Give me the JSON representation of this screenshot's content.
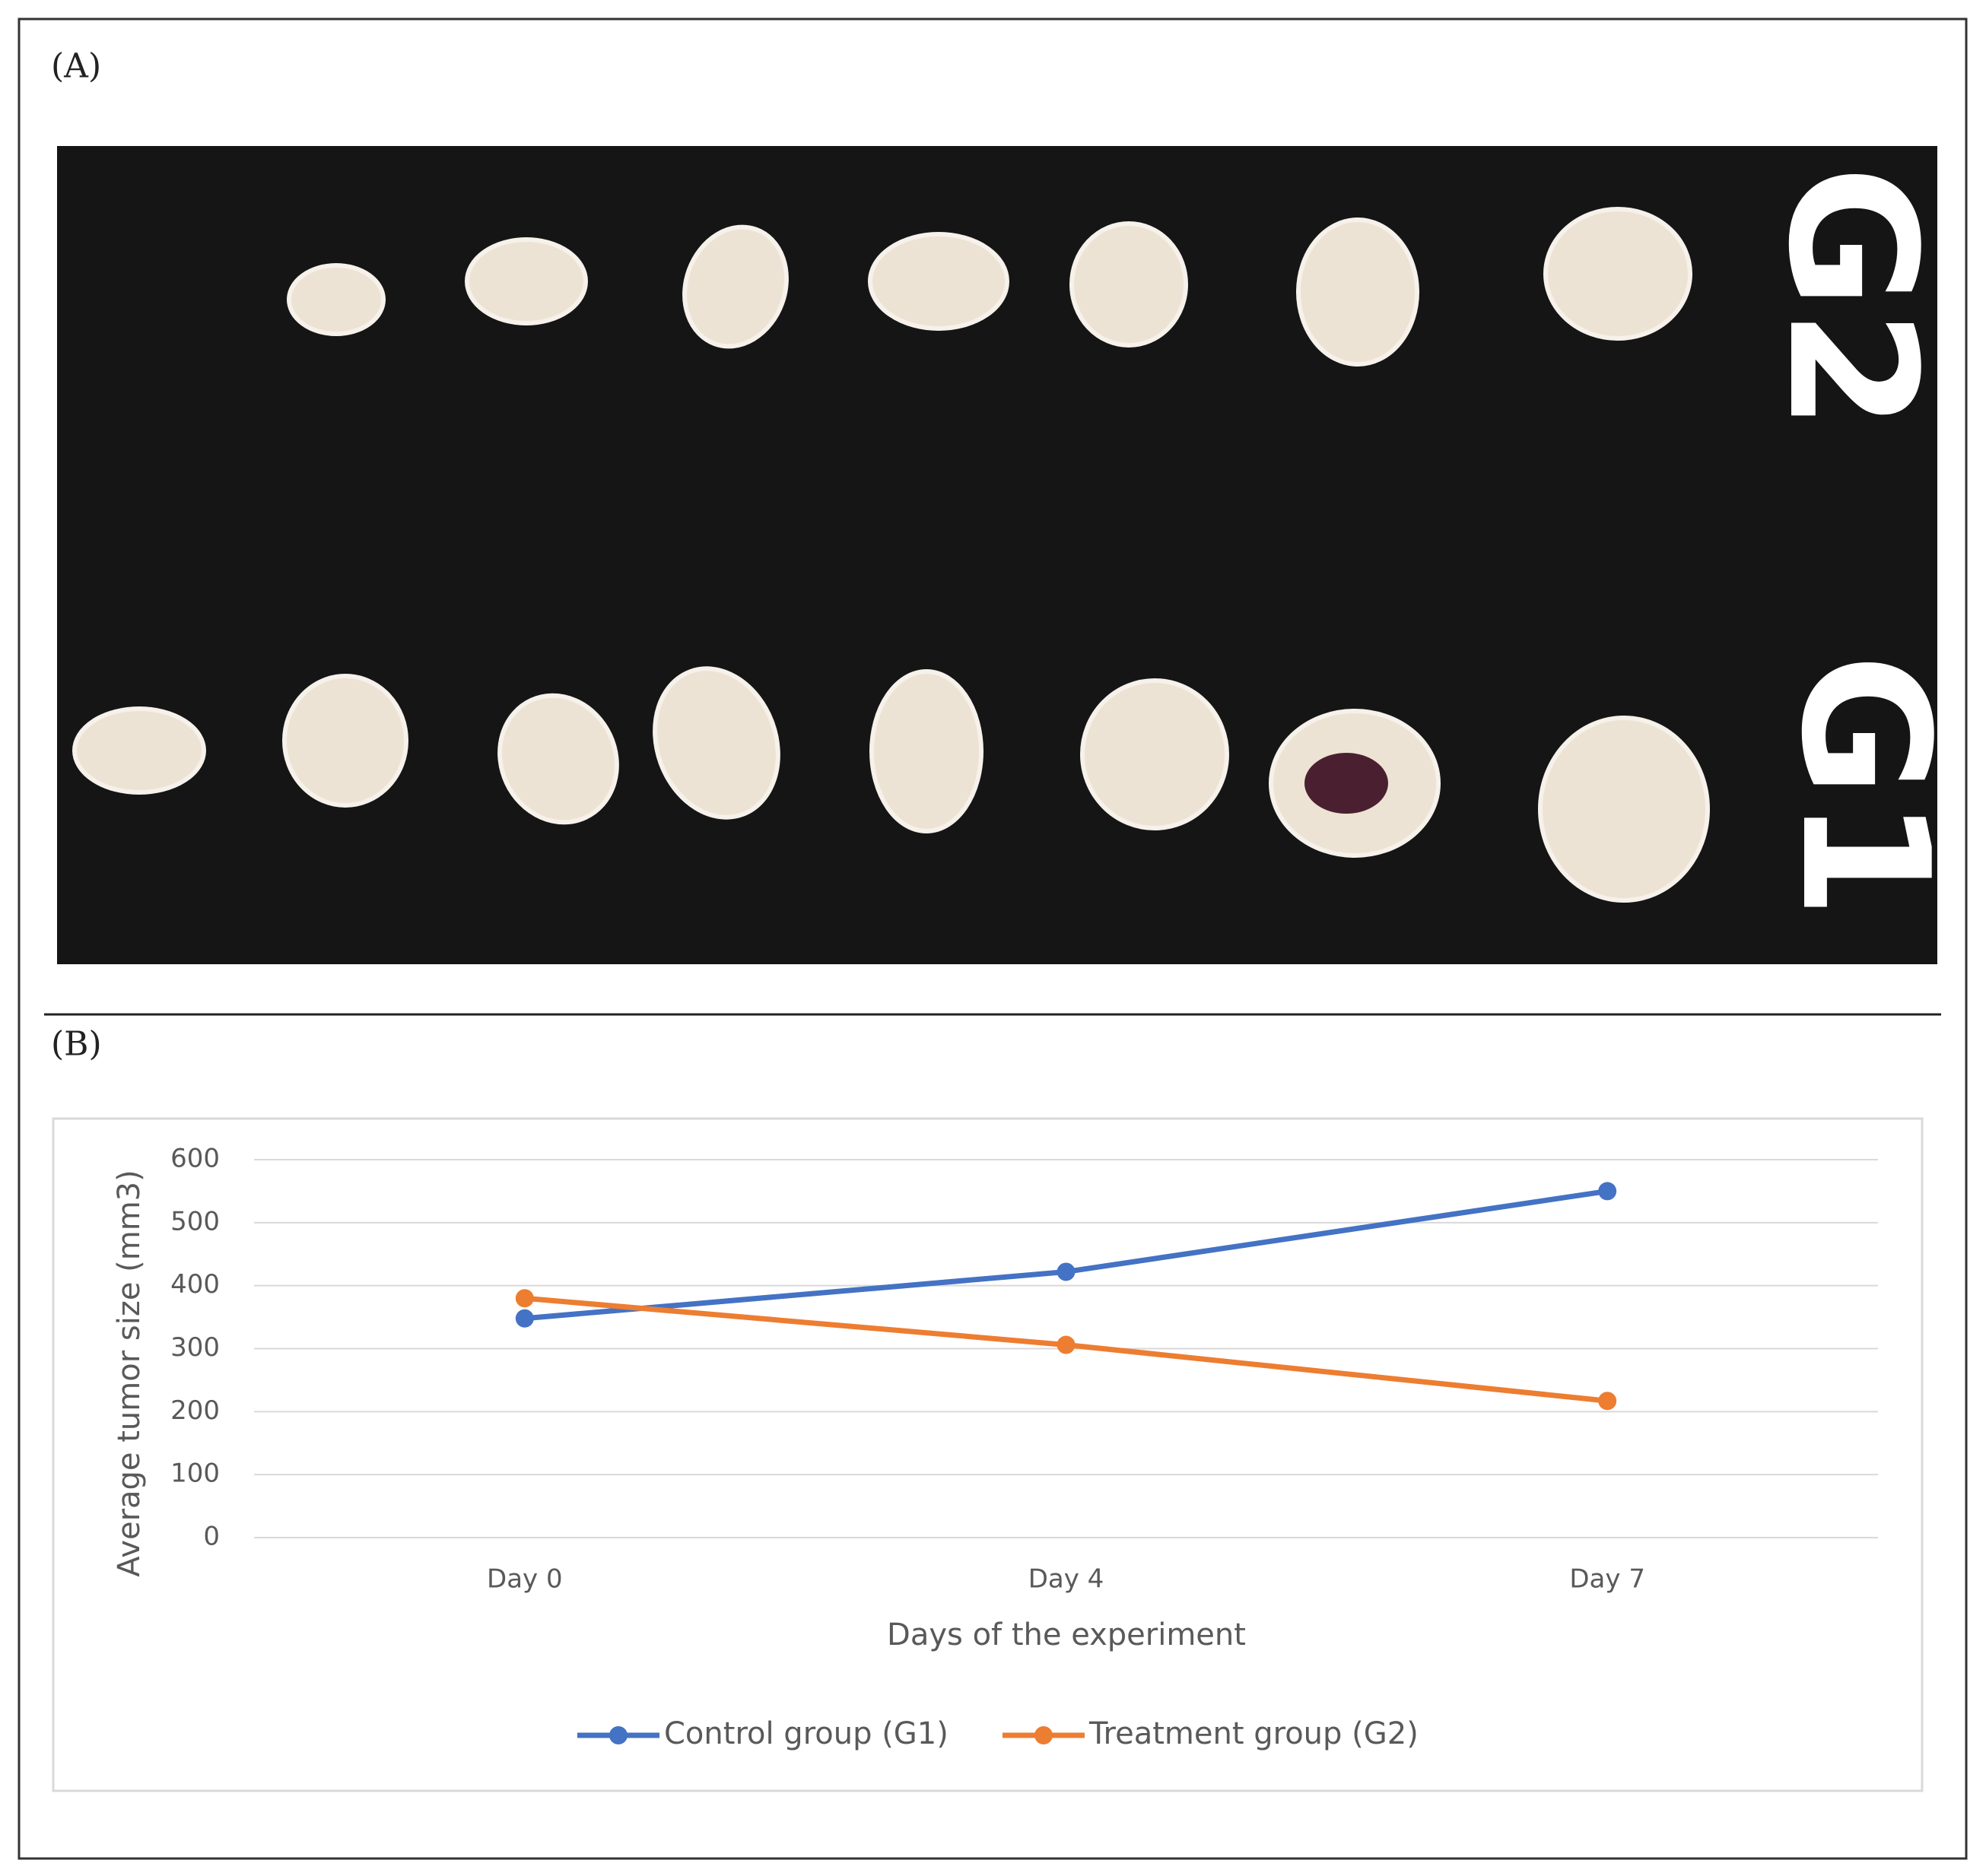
{
  "panel_a": {
    "label": "(A)",
    "row_labels": [
      "G2",
      "G1"
    ]
  },
  "chart_data": {
    "type": "line",
    "panel_label": "(B)",
    "x_label": "Days of the experiment",
    "y_label": "Average tumor size (mm3)",
    "categories": [
      "Day 0",
      "Day 4",
      "Day 7"
    ],
    "series": [
      {
        "name": "Control group (G1)",
        "color": "#4472c4",
        "values": [
          348,
          422,
          550
        ]
      },
      {
        "name": "Treatment group (G2)",
        "color": "#ed7d31",
        "values": [
          380,
          306,
          217
        ]
      }
    ],
    "ylim": [
      0,
      600
    ],
    "yticks": [
      0,
      100,
      200,
      300,
      400,
      500,
      600
    ],
    "grid": true,
    "legend": "bottom"
  }
}
